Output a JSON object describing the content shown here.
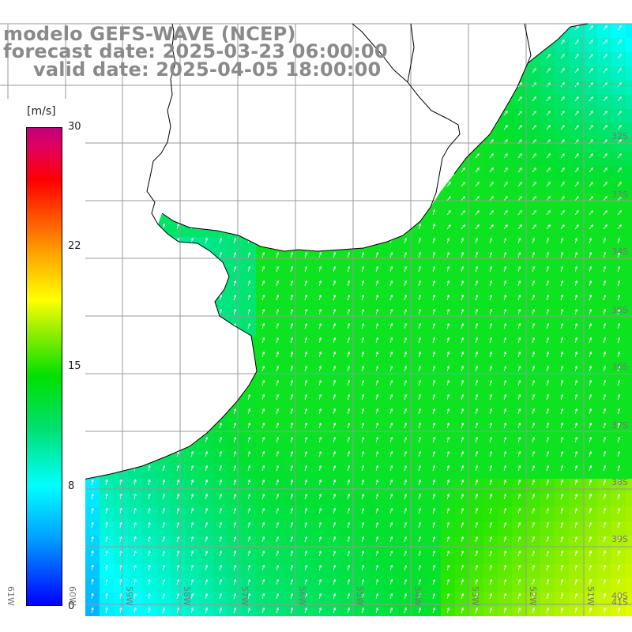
{
  "title": {
    "model": "modelo GEFS-WAVE (NCEP)",
    "forecast": "forecast date: 2025-03-23 06:00:00",
    "valid": "valid date: 2025-04-05 18:00:00"
  },
  "colorbar": {
    "unit": "[m/s]",
    "ticks": [
      "30",
      "22",
      "15",
      "8",
      "0"
    ],
    "tick_values": [
      30,
      22,
      15,
      8,
      0
    ],
    "min": 0,
    "max": 30,
    "colors": [
      "#0000ff",
      "#00a0ff",
      "#00ffff",
      "#00e070",
      "#00e000",
      "#a0f000",
      "#ffff00",
      "#ffa000",
      "#ff4000",
      "#ff0000",
      "#c0007a"
    ]
  },
  "axes": {
    "lon_labels": [
      "61W",
      "60W",
      "59W",
      "58W",
      "57W",
      "56W",
      "55W",
      "54W",
      "53W",
      "52W",
      "51W"
    ],
    "lat_labels": [
      "32S",
      "33S",
      "34S",
      "35S",
      "36S",
      "37S",
      "38S",
      "39S",
      "40S",
      "41S"
    ]
  },
  "colors": {
    "land": "#ffffff",
    "grid": "#999999",
    "coast": "#000000",
    "arrow": "#ffffff"
  }
}
